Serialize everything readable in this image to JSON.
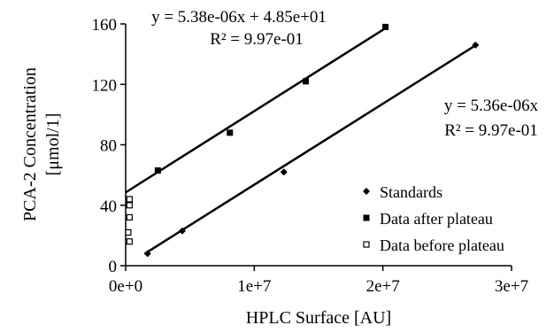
{
  "chart_data": {
    "type": "scatter",
    "xlabel": "HPLC Surface [AU]",
    "ylabel_line1": "PCA-2 Concentration",
    "ylabel_line2": "[μmol/1]",
    "xlim": [
      0,
      30000000
    ],
    "ylim": [
      0,
      160
    ],
    "x_ticks": [
      {
        "value": 0,
        "label": "0e+0"
      },
      {
        "value": 10000000,
        "label": "1e+7"
      },
      {
        "value": 20000000,
        "label": "2e+7"
      },
      {
        "value": 30000000,
        "label": "3e+7"
      }
    ],
    "y_ticks": [
      {
        "value": 0,
        "label": "0"
      },
      {
        "value": 40,
        "label": "40"
      },
      {
        "value": 80,
        "label": "80"
      },
      {
        "value": 120,
        "label": "120"
      },
      {
        "value": 160,
        "label": "160"
      }
    ],
    "grid": false,
    "legend_position": "bottom-right",
    "series": [
      {
        "name": "Standards",
        "marker": "diamond-filled",
        "points": [
          {
            "x": 1700000,
            "y": 8
          },
          {
            "x": 4400000,
            "y": 23
          },
          {
            "x": 12300000,
            "y": 62
          },
          {
            "x": 27200000,
            "y": 146
          }
        ]
      },
      {
        "name": "Data after plateau",
        "marker": "square-filled",
        "points": [
          {
            "x": 2500000,
            "y": 63
          },
          {
            "x": 8100000,
            "y": 88
          },
          {
            "x": 14000000,
            "y": 122
          },
          {
            "x": 20200000,
            "y": 158
          }
        ]
      },
      {
        "name": "Data before plateau",
        "marker": "square-open",
        "points": [
          {
            "x": 300000,
            "y": 16
          },
          {
            "x": 200000,
            "y": 22
          },
          {
            "x": 300000,
            "y": 32
          },
          {
            "x": 300000,
            "y": 40
          },
          {
            "x": 300000,
            "y": 44
          }
        ]
      }
    ],
    "trendlines": [
      {
        "slope": 5.38e-06,
        "intercept": 48.5,
        "x_range": [
          0,
          20300000
        ],
        "equation": "y = 5.38e-06x + 4.85e+01",
        "r2": "R² = 9.97e-01"
      },
      {
        "slope": 5.36e-06,
        "intercept": 0,
        "x_range": [
          1500000,
          27300000
        ],
        "equation": "y = 5.36e-06x",
        "r2": "R² = 9.97e-01"
      }
    ]
  }
}
